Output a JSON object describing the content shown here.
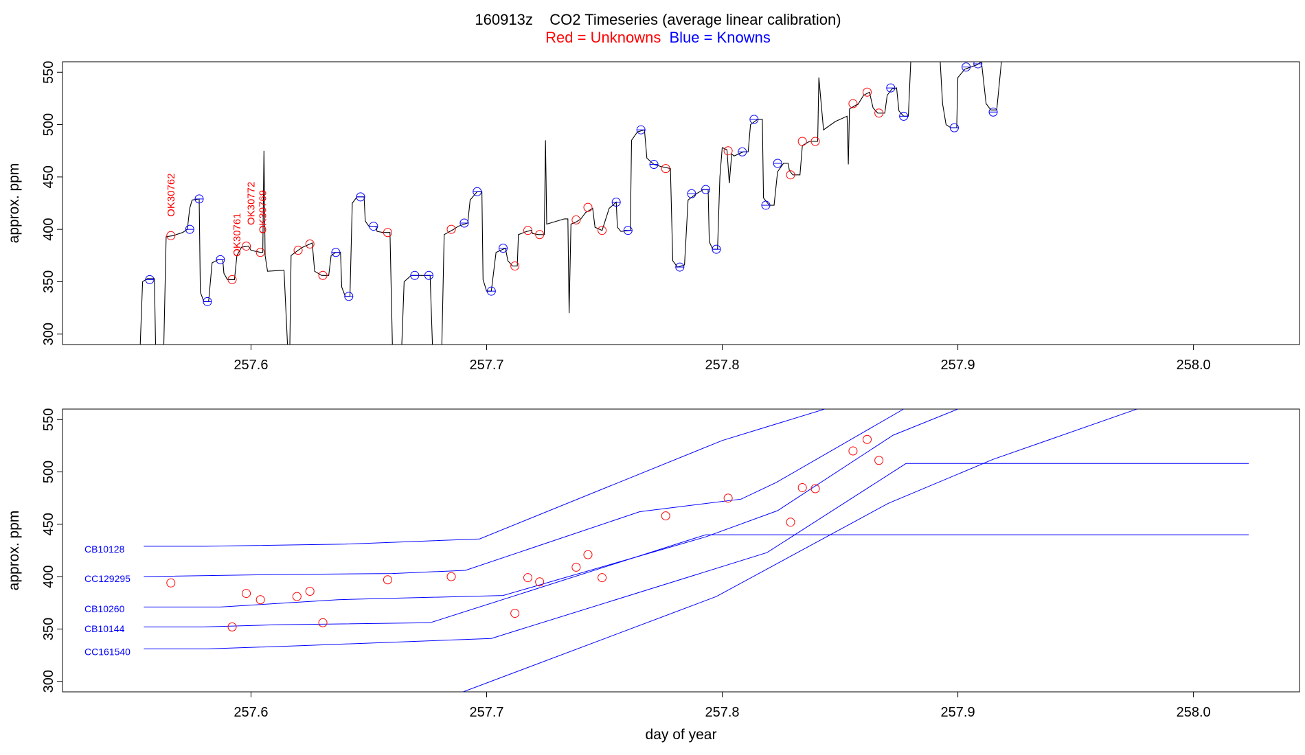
{
  "title": "160913z    CO2 Timeseries (average linear calibration)",
  "subtitle": {
    "red_text": "Red = Unknowns",
    "blue_text": "Blue = Knowns",
    "red_color": "#ff0000",
    "blue_color": "#0000ff"
  },
  "chart_data": [
    {
      "type": "line",
      "ylabel": "approx. ppm",
      "xlabel": "",
      "xlim": [
        257.52,
        258.045
      ],
      "ylim": [
        290,
        560
      ],
      "x_ticks": [
        257.6,
        257.7,
        257.8,
        257.9,
        258.0
      ],
      "x_tick_labels": [
        "257.6",
        "257.7",
        "257.8",
        "257.9",
        "258.0"
      ],
      "y_ticks": [
        300,
        350,
        400,
        450,
        500,
        550
      ],
      "y_tick_labels": [
        "300",
        "350",
        "400",
        "450",
        "500",
        "550"
      ],
      "trace_color": "#000000",
      "trace": [
        [
          257.553,
          290
        ],
        [
          257.554,
          350
        ],
        [
          257.556,
          353
        ],
        [
          257.559,
          353
        ],
        [
          257.5595,
          290
        ],
        [
          257.563,
          290
        ],
        [
          257.564,
          393
        ],
        [
          257.567,
          394
        ],
        [
          257.571,
          397
        ],
        [
          257.573,
          400
        ],
        [
          257.574,
          420
        ],
        [
          257.575,
          428
        ],
        [
          257.578,
          429
        ],
        [
          257.5785,
          340
        ],
        [
          257.58,
          331
        ],
        [
          257.582,
          331
        ],
        [
          257.5835,
          368
        ],
        [
          257.586,
          371
        ],
        [
          257.588,
          371
        ],
        [
          257.5885,
          358
        ],
        [
          257.59,
          352
        ],
        [
          257.593,
          352
        ],
        [
          257.594,
          375
        ],
        [
          257.596,
          383
        ],
        [
          257.599,
          384
        ],
        [
          257.6,
          380
        ],
        [
          257.602,
          379
        ],
        [
          257.604,
          378
        ],
        [
          257.605,
          378
        ],
        [
          257.6055,
          475
        ],
        [
          257.606,
          375
        ],
        [
          257.607,
          360
        ],
        [
          257.614,
          361
        ],
        [
          257.6155,
          290
        ],
        [
          257.6165,
          290
        ],
        [
          257.617,
          375
        ],
        [
          257.62,
          380
        ],
        [
          257.622,
          383
        ],
        [
          257.626,
          387
        ],
        [
          257.627,
          360
        ],
        [
          257.63,
          356
        ],
        [
          257.633,
          356
        ],
        [
          257.634,
          375
        ],
        [
          257.636,
          378
        ],
        [
          257.638,
          378
        ],
        [
          257.6385,
          345
        ],
        [
          257.64,
          336
        ],
        [
          257.642,
          336
        ],
        [
          257.643,
          425
        ],
        [
          257.645,
          431
        ],
        [
          257.648,
          431
        ],
        [
          257.6485,
          408
        ],
        [
          257.65,
          403
        ],
        [
          257.653,
          403
        ],
        [
          257.6535,
          398
        ],
        [
          257.656,
          397
        ],
        [
          257.659,
          397
        ],
        [
          257.66,
          290
        ],
        [
          257.664,
          290
        ],
        [
          257.665,
          350
        ],
        [
          257.668,
          356
        ],
        [
          257.676,
          356
        ],
        [
          257.677,
          290
        ],
        [
          257.681,
          290
        ],
        [
          257.682,
          395
        ],
        [
          257.686,
          400
        ],
        [
          257.688,
          403
        ],
        [
          257.692,
          406
        ],
        [
          257.693,
          428
        ],
        [
          257.696,
          436
        ],
        [
          257.698,
          436
        ],
        [
          257.6985,
          352
        ],
        [
          257.7,
          341
        ],
        [
          257.702,
          341
        ],
        [
          257.704,
          378
        ],
        [
          257.708,
          382
        ],
        [
          257.709,
          370
        ],
        [
          257.711,
          365
        ],
        [
          257.713,
          365
        ],
        [
          257.7135,
          395
        ],
        [
          257.717,
          398
        ],
        [
          257.719,
          399
        ],
        [
          257.7195,
          396
        ],
        [
          257.722,
          395
        ],
        [
          257.7245,
          395
        ],
        [
          257.725,
          485
        ],
        [
          257.7255,
          405
        ],
        [
          257.733,
          410
        ],
        [
          257.7345,
          410
        ],
        [
          257.735,
          320
        ],
        [
          257.7358,
          405
        ],
        [
          257.738,
          407
        ],
        [
          257.74,
          410
        ],
        [
          257.742,
          416
        ],
        [
          257.745,
          420
        ],
        [
          257.746,
          402
        ],
        [
          257.749,
          399
        ],
        [
          257.752,
          420
        ],
        [
          257.755,
          426
        ],
        [
          257.7555,
          402
        ],
        [
          257.757,
          398
        ],
        [
          257.761,
          399
        ],
        [
          257.7615,
          485
        ],
        [
          257.764,
          493
        ],
        [
          257.767,
          495
        ],
        [
          257.768,
          468
        ],
        [
          257.771,
          462
        ],
        [
          257.774,
          460
        ],
        [
          257.778,
          458
        ],
        [
          257.779,
          370
        ],
        [
          257.781,
          364
        ],
        [
          257.784,
          366
        ],
        [
          257.7855,
          428
        ],
        [
          257.789,
          434
        ],
        [
          257.792,
          438
        ],
        [
          257.794,
          438
        ],
        [
          257.7945,
          388
        ],
        [
          257.796,
          381
        ],
        [
          257.798,
          381
        ],
        [
          257.799,
          450
        ],
        [
          257.8,
          478
        ],
        [
          257.802,
          476
        ],
        [
          257.803,
          444
        ],
        [
          257.804,
          472
        ],
        [
          257.805,
          470
        ],
        [
          257.809,
          474
        ],
        [
          257.811,
          474
        ],
        [
          257.812,
          500
        ],
        [
          257.815,
          505
        ],
        [
          257.817,
          505
        ],
        [
          257.8175,
          430
        ],
        [
          257.82,
          423
        ],
        [
          257.822,
          423
        ],
        [
          257.8235,
          455
        ],
        [
          257.826,
          463
        ],
        [
          257.828,
          463
        ],
        [
          257.8285,
          456
        ],
        [
          257.83,
          452
        ],
        [
          257.833,
          452
        ],
        [
          257.834,
          480
        ],
        [
          257.837,
          484
        ],
        [
          257.8405,
          484
        ],
        [
          257.841,
          545
        ],
        [
          257.843,
          495
        ],
        [
          257.848,
          503
        ],
        [
          257.853,
          508
        ],
        [
          257.8535,
          462
        ],
        [
          257.854,
          515
        ],
        [
          257.857,
          519
        ],
        [
          257.8575,
          519
        ],
        [
          257.86,
          528
        ],
        [
          257.8625,
          531
        ],
        [
          257.864,
          516
        ],
        [
          257.866,
          511
        ],
        [
          257.869,
          511
        ],
        [
          257.87,
          528
        ],
        [
          257.872,
          534
        ],
        [
          257.874,
          535
        ],
        [
          257.875,
          513
        ],
        [
          257.877,
          508
        ],
        [
          257.879,
          508
        ],
        [
          257.88,
          560
        ],
        [
          257.8925,
          560
        ],
        [
          257.8935,
          520
        ],
        [
          257.895,
          500
        ],
        [
          257.897,
          497
        ],
        [
          257.8995,
          497
        ],
        [
          257.9,
          545
        ],
        [
          257.903,
          553
        ],
        [
          257.908,
          557
        ],
        [
          257.91,
          560
        ],
        [
          257.911,
          540
        ],
        [
          257.912,
          520
        ],
        [
          257.914,
          514
        ],
        [
          257.9165,
          514
        ],
        [
          257.9185,
          560
        ]
      ],
      "knowns": [
        [
          257.557,
          352
        ],
        [
          257.574,
          400
        ],
        [
          257.578,
          429
        ],
        [
          257.5815,
          331
        ],
        [
          257.587,
          371
        ],
        [
          257.636,
          378
        ],
        [
          257.6415,
          336
        ],
        [
          257.6465,
          431
        ],
        [
          257.652,
          403
        ],
        [
          257.6695,
          356
        ],
        [
          257.6755,
          356
        ],
        [
          257.6905,
          406
        ],
        [
          257.696,
          436
        ],
        [
          257.702,
          341
        ],
        [
          257.707,
          382
        ],
        [
          257.755,
          426
        ],
        [
          257.76,
          399
        ],
        [
          257.7655,
          495
        ],
        [
          257.771,
          462
        ],
        [
          257.782,
          364
        ],
        [
          257.787,
          434
        ],
        [
          257.793,
          438
        ],
        [
          257.7975,
          381
        ],
        [
          257.8085,
          474
        ],
        [
          257.8135,
          505
        ],
        [
          257.8185,
          423
        ],
        [
          257.8235,
          463
        ],
        [
          257.8715,
          535
        ],
        [
          257.877,
          508
        ],
        [
          257.8985,
          497
        ],
        [
          257.9035,
          555
        ],
        [
          257.9085,
          558
        ],
        [
          257.915,
          512
        ]
      ],
      "unknowns": [
        [
          257.566,
          394
        ],
        [
          257.592,
          352
        ],
        [
          257.598,
          384
        ],
        [
          257.604,
          378
        ],
        [
          257.62,
          380
        ],
        [
          257.625,
          386
        ],
        [
          257.6305,
          356
        ],
        [
          257.658,
          397
        ],
        [
          257.685,
          400
        ],
        [
          257.712,
          365
        ],
        [
          257.7175,
          399
        ],
        [
          257.7225,
          395
        ],
        [
          257.738,
          409
        ],
        [
          257.743,
          421
        ],
        [
          257.749,
          399
        ],
        [
          257.776,
          458
        ],
        [
          257.8025,
          475
        ],
        [
          257.829,
          452
        ],
        [
          257.834,
          484
        ],
        [
          257.8395,
          484
        ],
        [
          257.8555,
          520
        ],
        [
          257.8615,
          531
        ],
        [
          257.8665,
          511
        ]
      ],
      "annotations": [
        {
          "text": "OK30762",
          "x": 257.5675,
          "y": 412
        },
        {
          "text": "OK30761",
          "x": 257.5955,
          "y": 374
        },
        {
          "text": "OK30772",
          "x": 257.6015,
          "y": 404
        },
        {
          "text": "OK30769",
          "x": 257.6065,
          "y": 396
        }
      ]
    },
    {
      "type": "line",
      "ylabel": "approx. ppm",
      "xlabel": "day of year",
      "xlim": [
        257.52,
        258.045
      ],
      "ylim": [
        290,
        560
      ],
      "x_ticks": [
        257.6,
        257.7,
        257.8,
        257.9,
        258.0
      ],
      "x_tick_labels": [
        "257.6",
        "257.7",
        "257.8",
        "257.9",
        "258.0"
      ],
      "y_ticks": [
        300,
        350,
        400,
        450,
        500,
        550
      ],
      "y_tick_labels": [
        "300",
        "350",
        "400",
        "450",
        "500",
        "550"
      ],
      "series": [
        {
          "name": "CB10128",
          "label_y": 423,
          "values": [
            [
              257.5545,
              429
            ],
            [
              257.58,
              429
            ],
            [
              257.64,
              431
            ],
            [
              257.697,
              436
            ],
            [
              257.8,
              530
            ],
            [
              257.8435,
              560
            ]
          ]
        },
        {
          "name": "CC129295",
          "label_y": 395,
          "values": [
            [
              257.5545,
              400
            ],
            [
              257.61,
              402
            ],
            [
              257.66,
              403
            ],
            [
              257.691,
              406
            ],
            [
              257.765,
              462
            ],
            [
              257.808,
              474
            ],
            [
              257.823,
              490
            ],
            [
              257.877,
              560
            ]
          ]
        },
        {
          "name": "CB10260",
          "label_y": 366,
          "values": [
            [
              257.5545,
              371
            ],
            [
              257.587,
              371
            ],
            [
              257.637,
              378
            ],
            [
              257.707,
              382
            ],
            [
              257.793,
              438
            ],
            [
              257.8235,
              463
            ],
            [
              257.8725,
              535
            ],
            [
              257.9,
              560
            ]
          ]
        },
        {
          "name": "CB10144",
          "label_y": 347,
          "values": [
            [
              257.5545,
              352
            ],
            [
              257.58,
              352
            ],
            [
              257.61,
              354
            ],
            [
              257.676,
              356
            ],
            [
              257.793,
              440
            ],
            [
              258.0235,
              440
            ]
          ]
        },
        {
          "name": "CC161540",
          "label_y": 325,
          "values": [
            [
              257.5545,
              331
            ],
            [
              257.5815,
              331
            ],
            [
              257.62,
              334
            ],
            [
              257.702,
              341
            ],
            [
              257.819,
              423
            ],
            [
              257.878,
              508
            ],
            [
              258.0235,
              508
            ]
          ]
        },
        {
          "name": "",
          "values": [
            [
              257.69,
              290
            ],
            [
              257.7975,
              381
            ],
            [
              257.8705,
              470
            ],
            [
              257.915,
              512
            ],
            [
              257.976,
              560
            ]
          ]
        }
      ],
      "unknowns": [
        [
          257.566,
          394
        ],
        [
          257.592,
          352
        ],
        [
          257.598,
          384
        ],
        [
          257.604,
          378
        ],
        [
          257.6195,
          381
        ],
        [
          257.625,
          386
        ],
        [
          257.6305,
          356
        ],
        [
          257.658,
          397
        ],
        [
          257.685,
          400
        ],
        [
          257.712,
          365
        ],
        [
          257.7175,
          399
        ],
        [
          257.7225,
          395
        ],
        [
          257.738,
          409
        ],
        [
          257.743,
          421
        ],
        [
          257.749,
          399
        ],
        [
          257.776,
          458
        ],
        [
          257.8025,
          475
        ],
        [
          257.829,
          452
        ],
        [
          257.834,
          485
        ],
        [
          257.8395,
          484
        ],
        [
          257.8555,
          520
        ],
        [
          257.8615,
          531
        ],
        [
          257.8665,
          511
        ]
      ]
    }
  ]
}
